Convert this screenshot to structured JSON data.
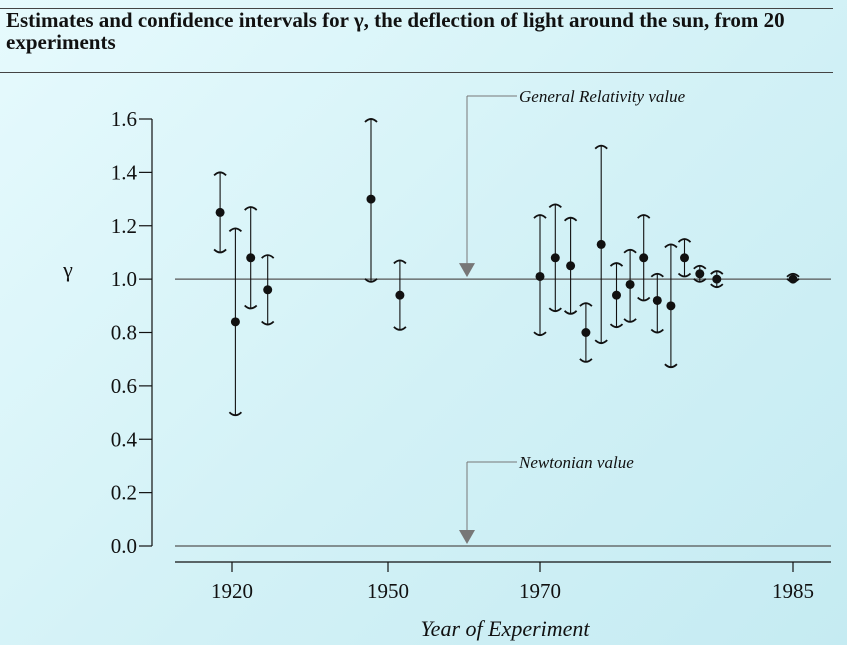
{
  "title": "Estimates and confidence intervals for γ, the deflection of light around the sun, from 20 experiments",
  "colors": {
    "background": "#d7f3f8",
    "ink": "#111111",
    "reference_line": "#555555",
    "arrow_marker": "#777777"
  },
  "chart_data": {
    "type": "scatter",
    "title": "Estimates and confidence intervals for γ, the deflection of light around the sun, from 20 experiments",
    "xlabel": "Year of Experiment",
    "ylabel": "γ",
    "x_ticks": [
      "1920",
      "1950",
      "1970",
      "1985"
    ],
    "y_ticks": [
      "0.0",
      "0.2",
      "0.4",
      "0.6",
      "0.8",
      "1.0",
      "1.2",
      "1.4",
      "1.6"
    ],
    "ylim": [
      0,
      1.6
    ],
    "reference_lines": [
      {
        "label": "General Relativity value",
        "y": 1.0
      },
      {
        "label": "Newtonian value",
        "y": 0.0
      }
    ],
    "axis_segments": [
      {
        "label": "1920",
        "start_year": 1920
      },
      {
        "label": "1950",
        "start_year": 1950
      },
      {
        "label": "1970",
        "start_year": 1970
      },
      {
        "label": "1985",
        "start_year": 1985
      }
    ],
    "points": [
      {
        "segment": 0,
        "offset": -0.35,
        "y": 1.25,
        "low": 1.1,
        "high": 1.4
      },
      {
        "segment": 0,
        "offset": 0.1,
        "y": 0.84,
        "low": 0.49,
        "high": 1.19
      },
      {
        "segment": 0,
        "offset": 0.55,
        "y": 1.08,
        "low": 0.89,
        "high": 1.27
      },
      {
        "segment": 0,
        "offset": 1.05,
        "y": 0.96,
        "low": 0.83,
        "high": 1.09
      },
      {
        "segment": 1,
        "offset": -0.5,
        "y": 1.3,
        "low": 0.99,
        "high": 1.6
      },
      {
        "segment": 1,
        "offset": 0.35,
        "y": 0.94,
        "low": 0.81,
        "high": 1.07
      },
      {
        "segment": 2,
        "offset": 0.0,
        "y": 1.01,
        "low": 0.79,
        "high": 1.24
      },
      {
        "segment": 2,
        "offset": 0.45,
        "y": 1.08,
        "low": 0.88,
        "high": 1.28
      },
      {
        "segment": 2,
        "offset": 0.9,
        "y": 1.05,
        "low": 0.87,
        "high": 1.23
      },
      {
        "segment": 2,
        "offset": 1.35,
        "y": 0.8,
        "low": 0.69,
        "high": 0.91
      },
      {
        "segment": 2,
        "offset": 1.8,
        "y": 1.13,
        "low": 0.76,
        "high": 1.5
      },
      {
        "segment": 2,
        "offset": 2.25,
        "y": 0.94,
        "low": 0.82,
        "high": 1.06
      },
      {
        "segment": 2,
        "offset": 2.65,
        "y": 0.98,
        "low": 0.84,
        "high": 1.11
      },
      {
        "segment": 2,
        "offset": 3.05,
        "y": 1.08,
        "low": 0.92,
        "high": 1.24
      },
      {
        "segment": 2,
        "offset": 3.45,
        "y": 0.92,
        "low": 0.8,
        "high": 1.02
      },
      {
        "segment": 2,
        "offset": 3.85,
        "y": 0.9,
        "low": 0.67,
        "high": 1.13
      },
      {
        "segment": 2,
        "offset": 4.25,
        "y": 1.08,
        "low": 1.01,
        "high": 1.15
      },
      {
        "segment": 2,
        "offset": 4.7,
        "y": 1.02,
        "low": 0.99,
        "high": 1.05
      },
      {
        "segment": 2,
        "offset": 5.2,
        "y": 1.0,
        "low": 0.97,
        "high": 1.03
      },
      {
        "segment": 3,
        "offset": 0.0,
        "y": 1.0,
        "low": 0.99,
        "high": 1.02
      }
    ]
  }
}
